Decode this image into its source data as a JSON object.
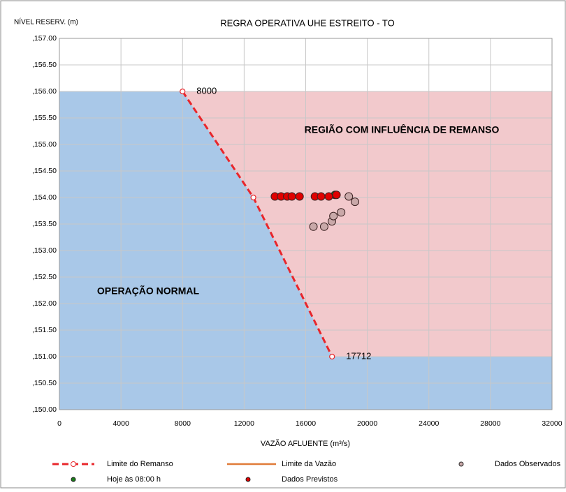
{
  "chart_data": {
    "type": "scatter",
    "title": "REGRA OPERATIVA UHE ESTREITO - TO",
    "y_label": "NÍVEL RESERV. (m)",
    "x_label": "VAZÃO AFLUENTE  (m³/s)",
    "xlim": [
      0,
      32000
    ],
    "xticks": [
      0,
      4000,
      8000,
      12000,
      16000,
      20000,
      24000,
      28000,
      32000
    ],
    "ylim": [
      150,
      157
    ],
    "yticks": [
      {
        "value": 150,
        "label": ",150.00"
      },
      {
        "value": 150.5,
        "label": ",150.50"
      },
      {
        "value": 151,
        "label": ",151.00"
      },
      {
        "value": 151.5,
        "label": ",151.50"
      },
      {
        "value": 152,
        "label": ",152.00"
      },
      {
        "value": 152.5,
        "label": ",152.50"
      },
      {
        "value": 153,
        "label": ",153.00"
      },
      {
        "value": 153.5,
        "label": ",153.50"
      },
      {
        "value": 154,
        "label": ",154.00"
      },
      {
        "value": 154.5,
        "label": ",154.50"
      },
      {
        "value": 155,
        "label": ",155.00"
      },
      {
        "value": 155.5,
        "label": ",155.50"
      },
      {
        "value": 156,
        "label": ",156.00"
      },
      {
        "value": 156.5,
        "label": ",156.50"
      },
      {
        "value": 157,
        "label": ",157.00"
      }
    ],
    "grid": true,
    "annotations": [
      {
        "text": "REGIÃO COM INFLUÊNCIA DE REMANSO",
        "color": "#e8262b"
      },
      {
        "text": "OPERAÇÃO NORMAL",
        "color": "#1f6fc1"
      }
    ],
    "region_colors": {
      "below": "#a9c8e8",
      "above": "#f2c9cc"
    },
    "series": [
      {
        "name": "Limite do Remanso",
        "color": "#e8262b",
        "style": "dashed-line",
        "x": [
          8000,
          12600,
          17712
        ],
        "values": [
          156.0,
          154.0,
          151.0
        ],
        "point_labels": [
          "8000",
          null,
          "17712"
        ]
      },
      {
        "name": "Limite da Vazão",
        "color": "#e07b39",
        "style": "line"
      },
      {
        "name": "Dados Observados",
        "color": "#c9a9a9",
        "style": "points",
        "x": [
          16500,
          17200,
          17700,
          17800,
          18300,
          19200,
          18800
        ],
        "values": [
          153.45,
          153.45,
          153.55,
          153.65,
          153.72,
          153.92,
          154.02
        ]
      },
      {
        "name": "Hoje às 08:00 h",
        "color": "#1a7a1a",
        "style": "points",
        "x": [
          17900
        ],
        "values": [
          154.05
        ]
      },
      {
        "name": "Dados Previstos",
        "color": "#e00000",
        "style": "points",
        "x": [
          14000,
          14400,
          14800,
          15100,
          15600,
          16600,
          17000,
          17500,
          18000
        ],
        "values": [
          154.02,
          154.02,
          154.02,
          154.02,
          154.02,
          154.02,
          154.02,
          154.02,
          154.05
        ]
      }
    ]
  }
}
